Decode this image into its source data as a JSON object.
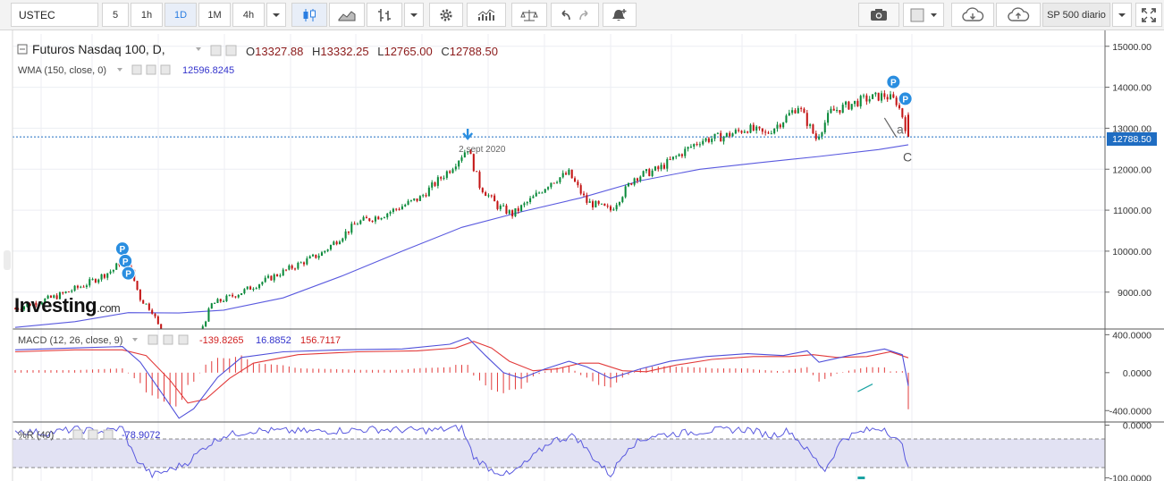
{
  "toolbar": {
    "symbol": "USTEC",
    "intervals": [
      "5",
      "1h",
      "1D",
      "1M",
      "4h"
    ],
    "active_interval": "1D",
    "dropdown_label": "SP 500 diario"
  },
  "brand": {
    "logo_main": "Investing",
    "logo_suffix": ".com"
  },
  "colors": {
    "up": "#0b8a3b",
    "down": "#c41616",
    "wma": "#5a5adf",
    "macd": "#4f4fd9",
    "signal": "#e23a3a",
    "histogram": "#e23a3a",
    "wr": "#5a5adf",
    "last_price_label": "#1f6dc2",
    "marker": "#2a8ee0"
  },
  "chart_data": [
    {
      "type": "candlestick",
      "title": "Futuros Nasdaq 100, D,",
      "ohlc_labels": {
        "o": "O",
        "h": "H",
        "l": "L",
        "c": "C"
      },
      "ohlc": {
        "o": "13327.88",
        "h": "13332.25",
        "l": "12765.00",
        "c": "12788.50"
      },
      "y_axis": {
        "ticks": [
          15000,
          14000,
          13000,
          12000,
          11000,
          10000,
          9000
        ],
        "tick_labels": [
          "15000.00",
          "14000.00",
          "13000.00",
          "12000.00",
          "11000.00",
          "10000.00",
          "9000.00"
        ],
        "range": [
          8100,
          15300
        ]
      },
      "last_price": {
        "value": 12788.5,
        "label": "12788.50"
      },
      "trend_waypoints": [
        [
          0,
          8600
        ],
        [
          14,
          8900
        ],
        [
          24,
          9200
        ],
        [
          33,
          9550
        ],
        [
          36,
          9800
        ],
        [
          38,
          9700
        ],
        [
          42,
          8850
        ],
        [
          46,
          8550
        ],
        [
          51,
          7650
        ],
        [
          57,
          7300
        ],
        [
          62,
          8000
        ],
        [
          66,
          8700
        ],
        [
          76,
          9000
        ],
        [
          90,
          9500
        ],
        [
          103,
          9950
        ],
        [
          115,
          10700
        ],
        [
          124,
          10900
        ],
        [
          136,
          11300
        ],
        [
          146,
          12000
        ],
        [
          152,
          12520
        ],
        [
          156,
          11600
        ],
        [
          162,
          11100
        ],
        [
          167,
          10900
        ],
        [
          174,
          11300
        ],
        [
          180,
          11700
        ],
        [
          186,
          11900
        ],
        [
          192,
          11200
        ],
        [
          200,
          11000
        ],
        [
          208,
          11800
        ],
        [
          216,
          12000
        ],
        [
          224,
          12400
        ],
        [
          230,
          12700
        ],
        [
          238,
          12800
        ],
        [
          246,
          13000
        ],
        [
          252,
          12850
        ],
        [
          258,
          13200
        ],
        [
          263,
          13550
        ],
        [
          269,
          12750
        ],
        [
          274,
          13400
        ],
        [
          285,
          13700
        ],
        [
          292,
          13800
        ],
        [
          296,
          13650
        ],
        [
          298,
          13300
        ],
        [
          300,
          12790
        ]
      ],
      "candle_count": 301,
      "annotations": [
        {
          "label": "2 sept 2020",
          "index": 152,
          "value": 12520
        },
        {
          "label": "a",
          "index": 297,
          "value": 12950
        },
        {
          "label": "C",
          "index": 300,
          "value": 12500
        }
      ],
      "pivot_markers": [
        {
          "label": "P",
          "index": 36,
          "value": 10060
        },
        {
          "label": "P",
          "index": 37,
          "value": 9760
        },
        {
          "label": "P",
          "index": 38,
          "value": 9460
        },
        {
          "label": "P",
          "index": 295,
          "value": 14130
        },
        {
          "label": "P",
          "index": 299,
          "value": 13720
        }
      ],
      "series": [
        {
          "name": "WMA (150, close, 0)",
          "value_label": "12596.8245",
          "points": [
            [
              0,
              8140
            ],
            [
              20,
              8280
            ],
            [
              38,
              8500
            ],
            [
              55,
              8490
            ],
            [
              70,
              8560
            ],
            [
              90,
              8860
            ],
            [
              110,
              9400
            ],
            [
              130,
              10000
            ],
            [
              150,
              10580
            ],
            [
              170,
              10960
            ],
            [
              190,
              11300
            ],
            [
              210,
              11720
            ],
            [
              230,
              12000
            ],
            [
              250,
              12160
            ],
            [
              270,
              12310
            ],
            [
              290,
              12480
            ],
            [
              300,
              12597
            ]
          ]
        }
      ]
    },
    {
      "type": "line",
      "title": "MACD (12, 26, close, 9)",
      "value_labels": [
        "-139.8265",
        "16.8852",
        "156.7117"
      ],
      "y_axis": {
        "ticks": [
          400,
          0,
          -400
        ],
        "tick_labels": [
          "400.0000",
          "0.0000",
          "-400.0000"
        ],
        "range": [
          -520,
          460
        ]
      },
      "series": [
        {
          "name": "MACD",
          "points": [
            [
              0,
              240
            ],
            [
              20,
              260
            ],
            [
              36,
              275
            ],
            [
              42,
              110
            ],
            [
              50,
              -250
            ],
            [
              55,
              -480
            ],
            [
              60,
              -380
            ],
            [
              68,
              -50
            ],
            [
              76,
              160
            ],
            [
              90,
              220
            ],
            [
              110,
              240
            ],
            [
              130,
              250
            ],
            [
              146,
              300
            ],
            [
              152,
              370
            ],
            [
              158,
              180
            ],
            [
              164,
              0
            ],
            [
              170,
              -60
            ],
            [
              178,
              40
            ],
            [
              186,
              120
            ],
            [
              192,
              60
            ],
            [
              200,
              -60
            ],
            [
              210,
              40
            ],
            [
              220,
              120
            ],
            [
              232,
              170
            ],
            [
              246,
              200
            ],
            [
              258,
              180
            ],
            [
              266,
              230
            ],
            [
              270,
              110
            ],
            [
              280,
              180
            ],
            [
              292,
              250
            ],
            [
              298,
              190
            ],
            [
              300,
              -140
            ]
          ]
        },
        {
          "name": "Signal",
          "points": [
            [
              0,
              220
            ],
            [
              20,
              240
            ],
            [
              36,
              240
            ],
            [
              44,
              180
            ],
            [
              52,
              -80
            ],
            [
              58,
              -320
            ],
            [
              64,
              -280
            ],
            [
              72,
              -60
            ],
            [
              80,
              100
            ],
            [
              95,
              190
            ],
            [
              115,
              220
            ],
            [
              135,
              230
            ],
            [
              148,
              260
            ],
            [
              154,
              330
            ],
            [
              160,
              260
            ],
            [
              166,
              120
            ],
            [
              174,
              20
            ],
            [
              182,
              40
            ],
            [
              190,
              100
            ],
            [
              196,
              100
            ],
            [
              204,
              20
            ],
            [
              212,
              10
            ],
            [
              222,
              80
            ],
            [
              234,
              140
            ],
            [
              248,
              170
            ],
            [
              260,
              170
            ],
            [
              268,
              190
            ],
            [
              276,
              160
            ],
            [
              286,
              170
            ],
            [
              294,
              220
            ],
            [
              300,
              157
            ]
          ]
        }
      ]
    },
    {
      "type": "line",
      "title": "%R (40)",
      "value_label": "-78.9072",
      "y_axis": {
        "ticks": [
          0,
          -100
        ],
        "tick_labels": [
          "0.0000",
          "-100.0000"
        ],
        "range": [
          -106,
          6
        ]
      },
      "bands": [
        -20,
        -80
      ],
      "series": [
        {
          "name": "%R",
          "points": [
            [
              0,
              -10
            ],
            [
              10,
              -15
            ],
            [
              20,
              -8
            ],
            [
              30,
              -12
            ],
            [
              36,
              -5
            ],
            [
              40,
              -60
            ],
            [
              46,
              -95
            ],
            [
              52,
              -85
            ],
            [
              58,
              -70
            ],
            [
              64,
              -40
            ],
            [
              70,
              -20
            ],
            [
              80,
              -10
            ],
            [
              100,
              -12
            ],
            [
              120,
              -8
            ],
            [
              140,
              -10
            ],
            [
              150,
              -5
            ],
            [
              154,
              -60
            ],
            [
              160,
              -85
            ],
            [
              166,
              -95
            ],
            [
              172,
              -70
            ],
            [
              180,
              -30
            ],
            [
              188,
              -20
            ],
            [
              194,
              -60
            ],
            [
              200,
              -95
            ],
            [
              206,
              -40
            ],
            [
              214,
              -20
            ],
            [
              224,
              -15
            ],
            [
              234,
              -10
            ],
            [
              246,
              -8
            ],
            [
              254,
              -20
            ],
            [
              260,
              -10
            ],
            [
              268,
              -60
            ],
            [
              272,
              -85
            ],
            [
              278,
              -25
            ],
            [
              286,
              -10
            ],
            [
              292,
              -5
            ],
            [
              298,
              -40
            ],
            [
              300,
              -79
            ]
          ]
        }
      ]
    }
  ]
}
